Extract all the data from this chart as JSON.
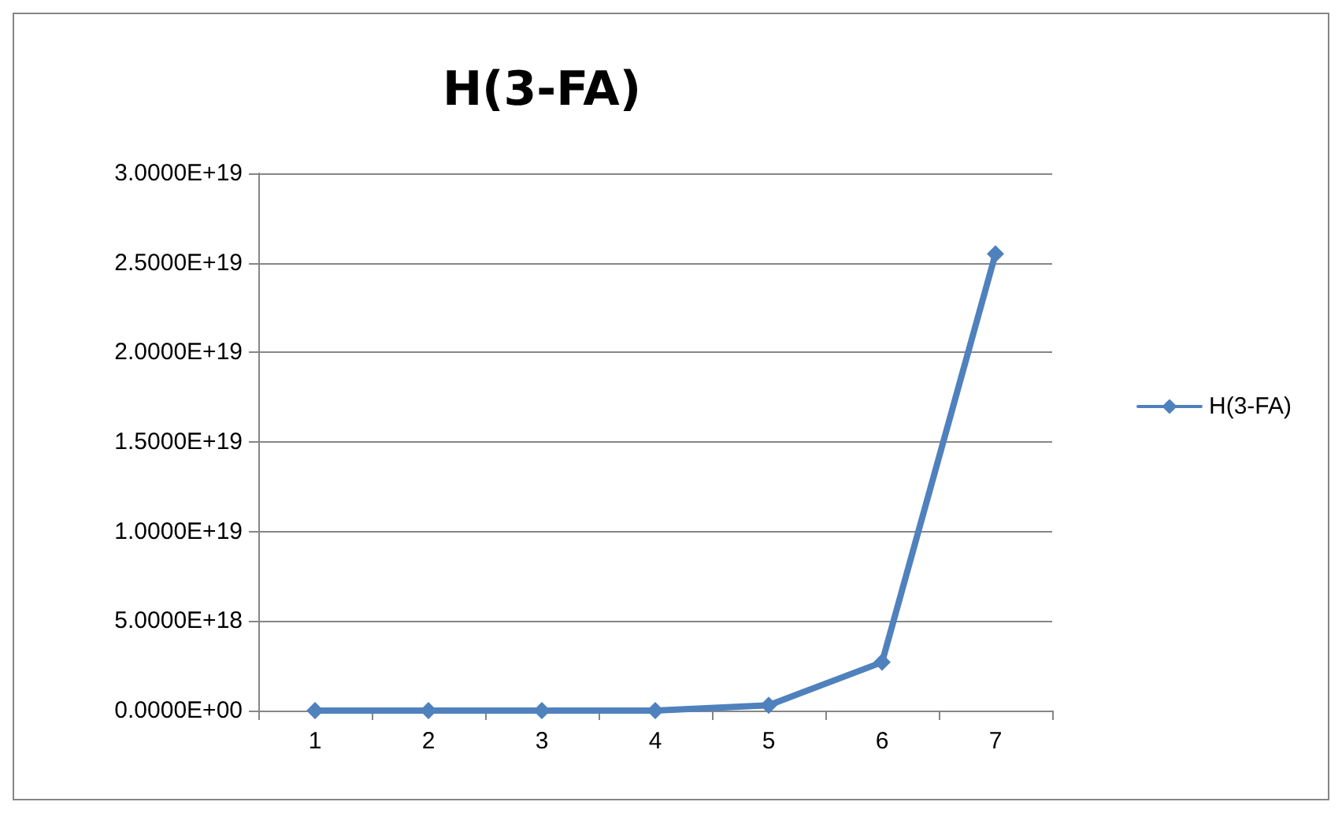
{
  "chart_data": {
    "type": "line",
    "title": "H(3-FA)",
    "categories": [
      "1",
      "2",
      "3",
      "4",
      "5",
      "6",
      "7"
    ],
    "series": [
      {
        "name": "H(3-FA)",
        "color": "#4f81bd",
        "values": [
          0,
          0,
          0,
          0,
          3e+17,
          2.7e+18,
          2.55e+19
        ]
      }
    ],
    "ylim": [
      0,
      3e+19
    ],
    "yticks": [
      {
        "value": 0,
        "label": "0.0000E+00"
      },
      {
        "value": 5e+18,
        "label": "5.0000E+18"
      },
      {
        "value": 1e+19,
        "label": "1.0000E+19"
      },
      {
        "value": 1.5e+19,
        "label": "1.5000E+19"
      },
      {
        "value": 2e+19,
        "label": "2.0000E+19"
      },
      {
        "value": 2.5e+19,
        "label": "2.5000E+19"
      },
      {
        "value": 3e+19,
        "label": "3.0000E+19"
      }
    ],
    "grid": "y",
    "legend": "right",
    "marker": "diamond",
    "line_style": "solid"
  }
}
